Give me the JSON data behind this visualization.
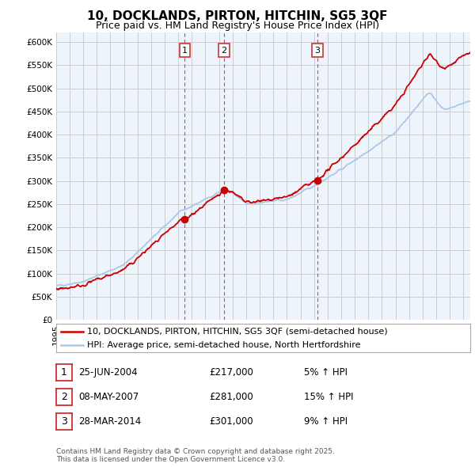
{
  "title": "10, DOCKLANDS, PIRTON, HITCHIN, SG5 3QF",
  "subtitle": "Price paid vs. HM Land Registry's House Price Index (HPI)",
  "ylim": [
    0,
    620000
  ],
  "yticks": [
    0,
    50000,
    100000,
    150000,
    200000,
    250000,
    300000,
    350000,
    400000,
    450000,
    500000,
    550000,
    600000
  ],
  "ytick_labels": [
    "£0",
    "£50K",
    "£100K",
    "£150K",
    "£200K",
    "£250K",
    "£300K",
    "£350K",
    "£400K",
    "£450K",
    "£500K",
    "£550K",
    "£600K"
  ],
  "house_color": "#cc0000",
  "hpi_color": "#aac8e8",
  "vline_color": "#cc3333",
  "grid_color": "#cccccc",
  "plot_bg_color": "#eef4fb",
  "background_color": "#ffffff",
  "legend_house": "10, DOCKLANDS, PIRTON, HITCHIN, SG5 3QF (semi-detached house)",
  "legend_hpi": "HPI: Average price, semi-detached house, North Hertfordshire",
  "sale_year_vals": [
    2004.48,
    2007.35,
    2014.24
  ],
  "sale_prices": [
    217000,
    281000,
    301000
  ],
  "sale_labels": [
    "1",
    "2",
    "3"
  ],
  "sale_info": [
    {
      "num": "1",
      "date": "25-JUN-2004",
      "price": "£217,000",
      "pct": "5% ↑ HPI"
    },
    {
      "num": "2",
      "date": "08-MAY-2007",
      "price": "£281,000",
      "pct": "15% ↑ HPI"
    },
    {
      "num": "3",
      "date": "28-MAR-2014",
      "price": "£301,000",
      "pct": "9% ↑ HPI"
    }
  ],
  "footer": "Contains HM Land Registry data © Crown copyright and database right 2025.\nThis data is licensed under the Open Government Licence v3.0.",
  "title_fontsize": 11,
  "subtitle_fontsize": 9,
  "axis_fontsize": 7.5,
  "legend_fontsize": 8
}
